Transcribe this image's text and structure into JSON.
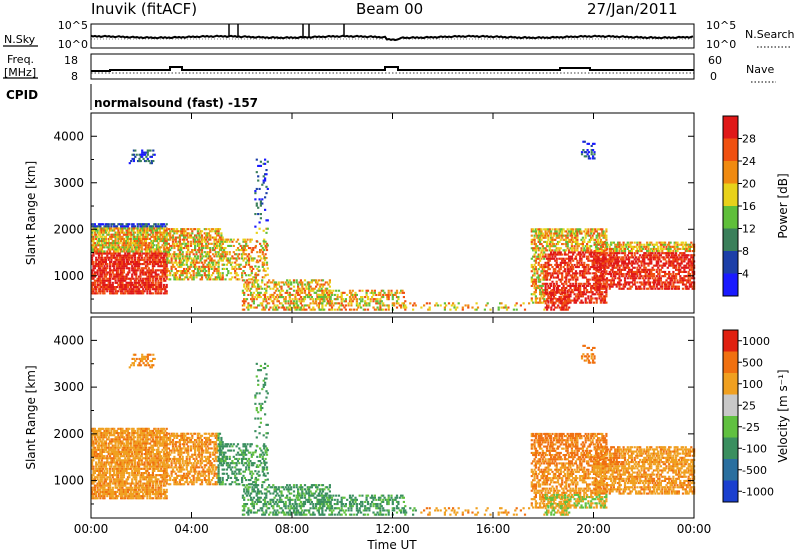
{
  "header": {
    "station": "Inuvik (fitACF)",
    "beam": "Beam 00",
    "date": "27/Jan/2011"
  },
  "strips": {
    "nsky_label": "N.Sky",
    "nsky_ticks": [
      "10^5",
      "10^0"
    ],
    "nsearch_label": "N.Search",
    "nsearch_ticks": [
      "10^5",
      "10^0"
    ],
    "freq_label": "Freq.",
    "freq_unit": "[MHz]",
    "freq_ticks": [
      "18",
      "8"
    ],
    "nave_label": "Nave",
    "nave_ticks": [
      "60",
      "0"
    ],
    "cpid_label": "CPID",
    "cpid_value": "normalsound (fast) -157"
  },
  "chart_data": [
    {
      "type": "heatmap",
      "name": "power",
      "ylabel": "Slant Range [km]",
      "yticks": [
        "1000",
        "2000",
        "3000",
        "4000"
      ],
      "ylim": [
        200,
        4500
      ],
      "colorbar_label": "Power [dB]",
      "colorbar_ticks": [
        "4",
        "8",
        "12",
        "16",
        "20",
        "24",
        "28"
      ],
      "colors": [
        "#1a1aff",
        "#1c3fa8",
        "#3a7f5a",
        "#5fbf3a",
        "#e8d21a",
        "#f08a10",
        "#f05010",
        "#e01818"
      ]
    },
    {
      "type": "heatmap",
      "name": "velocity",
      "ylabel": "Slant Range [km]",
      "yticks": [
        "1000",
        "2000",
        "3000",
        "4000"
      ],
      "ylim": [
        200,
        4500
      ],
      "colorbar_label": "Velocity [m s⁻¹]",
      "colorbar_ticks": [
        "1000",
        "500",
        "100",
        "25",
        "-25",
        "-100",
        "-500",
        "-1000"
      ],
      "colors": [
        "#1a3fcf",
        "#2a6f9f",
        "#3a8f5f",
        "#60c040",
        "#c8c8c8",
        "#f0a020",
        "#f07010",
        "#e02010"
      ]
    }
  ],
  "time_axis": {
    "ticks": [
      "00:00",
      "04:00",
      "08:00",
      "12:00",
      "16:00",
      "20:00",
      "00:00"
    ],
    "label": "Time UT"
  }
}
